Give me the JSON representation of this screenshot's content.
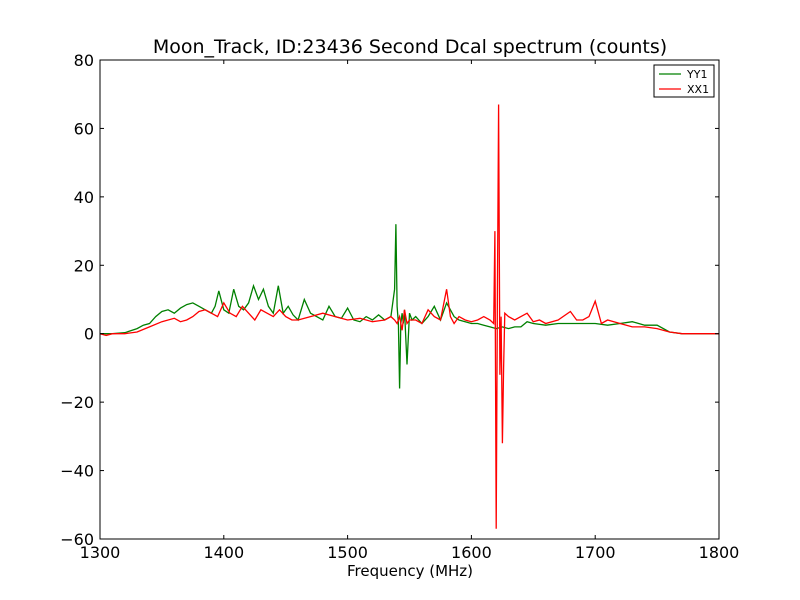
{
  "chart_data": {
    "type": "line",
    "title": "Moon_Track, ID:23436 Second Dcal spectrum (counts)",
    "xlabel": "Frequency (MHz)",
    "ylabel": "",
    "xlim": [
      1300,
      1800
    ],
    "ylim": [
      -60,
      80
    ],
    "xticks": [
      1300,
      1400,
      1500,
      1600,
      1700,
      1800
    ],
    "yticks": [
      -60,
      -40,
      -20,
      0,
      20,
      40,
      60,
      80
    ],
    "xtick_labels": [
      "1300",
      "1400",
      "1500",
      "1600",
      "1700",
      "1800"
    ],
    "ytick_labels": [
      "−60",
      "−40",
      "−20",
      "0",
      "20",
      "40",
      "60",
      "80"
    ],
    "grid": false,
    "legend_position": "top-right",
    "series": [
      {
        "name": "YY1",
        "color": "#008000",
        "x": [
          1300,
          1310,
          1320,
          1330,
          1335,
          1340,
          1345,
          1350,
          1355,
          1360,
          1365,
          1370,
          1375,
          1380,
          1385,
          1390,
          1393,
          1396,
          1400,
          1404,
          1408,
          1412,
          1416,
          1420,
          1424,
          1428,
          1432,
          1436,
          1440,
          1444,
          1448,
          1452,
          1456,
          1460,
          1465,
          1470,
          1475,
          1480,
          1485,
          1490,
          1495,
          1500,
          1505,
          1510,
          1515,
          1520,
          1525,
          1530,
          1535,
          1538,
          1539,
          1540,
          1541,
          1542,
          1543,
          1544,
          1545,
          1546,
          1548,
          1550,
          1552,
          1555,
          1560,
          1565,
          1570,
          1575,
          1580,
          1583,
          1586,
          1590,
          1595,
          1600,
          1605,
          1610,
          1615,
          1620,
          1625,
          1630,
          1635,
          1640,
          1645,
          1650,
          1660,
          1670,
          1680,
          1690,
          1700,
          1710,
          1720,
          1730,
          1740,
          1750,
          1760,
          1770,
          1780,
          1790,
          1800
        ],
        "y": [
          0,
          0,
          0.3,
          1.5,
          2.5,
          3,
          5,
          6.5,
          7,
          6,
          7.5,
          8.5,
          9,
          8,
          7,
          6,
          8,
          12.5,
          7,
          6,
          13,
          8,
          7,
          9,
          14,
          10,
          13,
          8,
          6,
          14,
          6,
          8,
          5.5,
          4,
          10,
          6,
          5,
          4,
          8,
          5,
          4.5,
          7.5,
          4,
          3.5,
          5,
          4,
          5.5,
          4,
          5,
          13,
          32,
          8,
          3,
          -16,
          3,
          6,
          3,
          7,
          -9,
          6,
          4,
          5,
          3,
          5,
          8,
          4,
          9,
          7,
          5,
          4,
          3.5,
          3,
          3,
          2.5,
          2,
          1.5,
          2,
          1.5,
          2,
          2,
          3.5,
          3,
          2.5,
          3,
          3,
          3,
          3,
          2.5,
          3,
          3.5,
          2.5,
          2.5,
          0.5,
          0,
          0,
          0,
          0
        ]
      },
      {
        "name": "XX1",
        "color": "#ff0000",
        "x": [
          1300,
          1305,
          1310,
          1320,
          1330,
          1340,
          1350,
          1360,
          1365,
          1370,
          1375,
          1380,
          1385,
          1390,
          1395,
          1400,
          1405,
          1410,
          1415,
          1420,
          1425,
          1430,
          1435,
          1440,
          1445,
          1450,
          1455,
          1460,
          1470,
          1480,
          1490,
          1500,
          1510,
          1520,
          1530,
          1535,
          1538,
          1540,
          1542,
          1544,
          1546,
          1548,
          1550,
          1555,
          1560,
          1565,
          1570,
          1575,
          1580,
          1583,
          1586,
          1590,
          1595,
          1600,
          1605,
          1610,
          1615,
          1618,
          1619,
          1620,
          1621,
          1622,
          1623,
          1624,
          1625,
          1626,
          1627,
          1630,
          1635,
          1640,
          1645,
          1650,
          1655,
          1660,
          1670,
          1680,
          1685,
          1690,
          1695,
          1700,
          1705,
          1710,
          1720,
          1730,
          1740,
          1750,
          1760,
          1770,
          1780,
          1790,
          1800
        ],
        "y": [
          0,
          -0.5,
          0,
          0,
          0.5,
          2,
          3.5,
          4.5,
          3.5,
          4,
          5,
          6.5,
          7,
          6,
          5,
          9,
          6,
          5,
          8,
          6,
          4,
          7,
          6,
          5,
          7,
          5,
          4,
          4,
          5,
          6,
          5,
          4,
          4.5,
          3.5,
          4,
          5,
          4,
          3,
          5,
          1,
          7,
          3,
          4,
          4,
          3,
          7,
          5,
          4,
          13,
          5,
          3,
          5,
          4,
          3.5,
          4,
          5,
          4,
          3,
          30,
          -57,
          11,
          67,
          -12,
          5,
          -32,
          -10,
          6,
          5,
          4,
          5,
          6,
          3.5,
          4,
          3,
          4,
          6.5,
          4,
          4,
          5,
          9.5,
          3,
          4,
          3,
          2,
          2,
          1.5,
          0.5,
          0,
          0,
          0,
          0
        ]
      }
    ]
  }
}
